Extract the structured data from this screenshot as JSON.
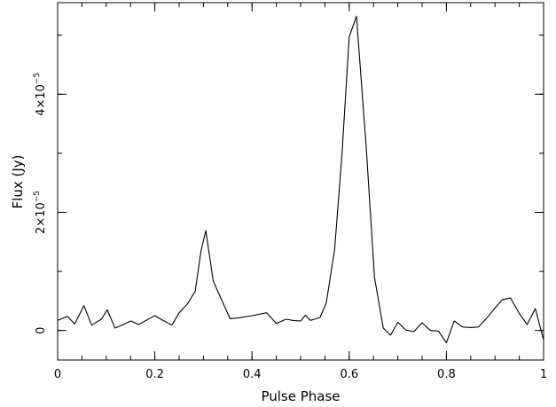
{
  "chart_data": {
    "type": "line",
    "title": "",
    "xlabel": "Pulse Phase",
    "ylabel": "Flux (Jy)",
    "xlim": [
      0,
      1
    ],
    "ylim": [
      -5e-06,
      5.55e-05
    ],
    "grid": false,
    "x_ticks": [
      {
        "value": 0,
        "label": "0"
      },
      {
        "value": 0.2,
        "label": "0.2"
      },
      {
        "value": 0.4,
        "label": "0.4"
      },
      {
        "value": 0.6,
        "label": "0.6"
      },
      {
        "value": 0.8,
        "label": "0.8"
      },
      {
        "value": 1,
        "label": "1"
      }
    ],
    "x_minor_step": 0.05,
    "y_ticks": [
      {
        "value": 0,
        "base": "0",
        "exp": ""
      },
      {
        "value": 2e-05,
        "base": "2×10",
        "exp": "−5"
      },
      {
        "value": 4e-05,
        "base": "4×10",
        "exp": "−5"
      }
    ],
    "y_minor_step": 1e-05,
    "series": [
      {
        "color": "#000000",
        "x": [
          0.0,
          0.02,
          0.035,
          0.054,
          0.07,
          0.09,
          0.102,
          0.118,
          0.135,
          0.151,
          0.167,
          0.184,
          0.2,
          0.217,
          0.235,
          0.25,
          0.267,
          0.283,
          0.295,
          0.305,
          0.32,
          0.34,
          0.355,
          0.37,
          0.4,
          0.43,
          0.45,
          0.47,
          0.485,
          0.5,
          0.51,
          0.52,
          0.54,
          0.553,
          0.57,
          0.585,
          0.6,
          0.615,
          0.635,
          0.652,
          0.67,
          0.685,
          0.7,
          0.716,
          0.733,
          0.75,
          0.767,
          0.784,
          0.8,
          0.816,
          0.833,
          0.85,
          0.866,
          0.883,
          0.9,
          0.915,
          0.932,
          0.95,
          0.966,
          0.983,
          1.0
        ],
        "y": [
          1.7e-06,
          2.4e-06,
          1.1e-06,
          4.2e-06,
          9e-07,
          1.9e-06,
          3.5e-06,
          4e-07,
          1e-06,
          1.6e-06,
          1e-06,
          1.8e-06,
          2.5e-06,
          1.7e-06,
          9e-07,
          3e-06,
          4.5e-06,
          6.6e-06,
          1.35e-05,
          1.69e-05,
          8.4e-06,
          4.7e-06,
          2e-06,
          2.1e-06,
          2.5e-06,
          3e-06,
          1.2e-06,
          1.9e-06,
          1.7e-06,
          1.6e-06,
          2.6e-06,
          1.7e-06,
          2.2e-06,
          4.7e-06,
          1.38e-05,
          2.97e-05,
          4.97e-05,
          5.32e-05,
          3.1e-05,
          9e-06,
          4e-07,
          -8e-07,
          1.4e-06,
          1e-07,
          -2e-07,
          1.3e-06,
          0.0,
          -1e-07,
          -2.1e-06,
          1.6e-06,
          6e-07,
          5e-07,
          6e-07,
          2.1e-06,
          3.8e-06,
          5.2e-06,
          5.5e-06,
          2.9e-06,
          1e-06,
          3.7e-06,
          -1.6e-06
        ]
      }
    ]
  }
}
